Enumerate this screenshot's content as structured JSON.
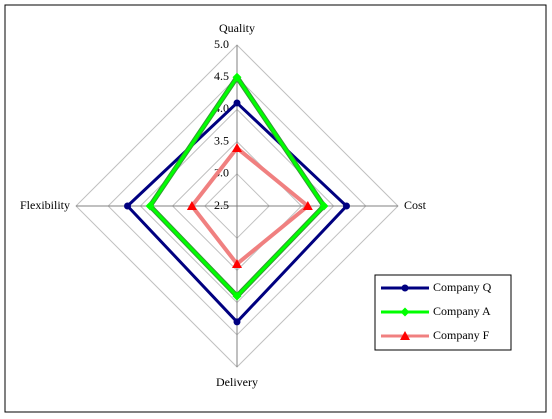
{
  "chart_data": {
    "type": "radar",
    "axes": [
      "Quality",
      "Cost",
      "Delivery",
      "Flexibility"
    ],
    "ylim": [
      2.5,
      5.0
    ],
    "yticks": [
      2.5,
      {
        "value": 3,
        "label": "3.0"
      },
      3.5,
      {
        "value": 4,
        "label": "4.0"
      },
      4.5,
      {
        "value": 5,
        "label": "5.0"
      }
    ],
    "grid": true,
    "legend": "lower right",
    "series": [
      {
        "name": "Company Q",
        "color": "#000080",
        "marker": "circle",
        "values": [
          4.1,
          4.2,
          4.3,
          4.2
        ]
      },
      {
        "name": "Company A",
        "color": "#00ff00",
        "marker": "diamond",
        "values": [
          4.5,
          3.85,
          3.9,
          3.85
        ]
      },
      {
        "name": "Company F",
        "color": "#ff0000",
        "line_color": "#f08080",
        "marker": "triangle",
        "values": [
          3.4,
          3.6,
          3.4,
          3.2
        ]
      }
    ]
  }
}
